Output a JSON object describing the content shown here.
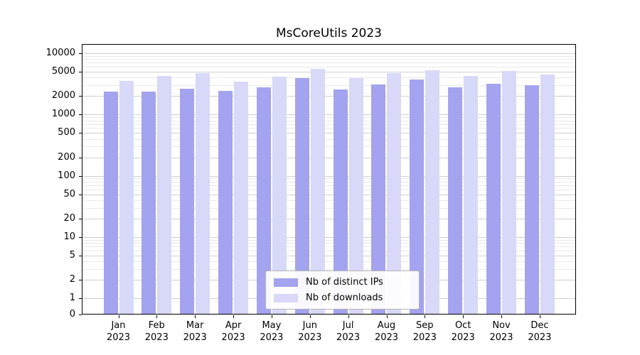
{
  "title": "MsCoreUtils 2023",
  "chart_data": {
    "type": "bar",
    "title": "MsCoreUtils 2023",
    "categories": [
      "Jan 2023",
      "Feb 2023",
      "Mar 2023",
      "Apr 2023",
      "May 2023",
      "Jun 2023",
      "Jul 2023",
      "Aug 2023",
      "Sep 2023",
      "Oct 2023",
      "Nov 2023",
      "Dec 2023"
    ],
    "x_tick_line1": [
      "Jan",
      "Feb",
      "Mar",
      "Apr",
      "May",
      "Jun",
      "Jul",
      "Aug",
      "Sep",
      "Oct",
      "Nov",
      "Dec"
    ],
    "x_tick_line2": "2023",
    "series": [
      {
        "name": "Nb of distinct IPs",
        "color": "#a3a3ef",
        "values": [
          2350,
          2400,
          2650,
          2450,
          2750,
          3900,
          2550,
          3100,
          3700,
          2750,
          3200,
          3000
        ]
      },
      {
        "name": "Nb of downloads",
        "color": "#d8d8f8",
        "values": [
          3500,
          4300,
          4750,
          3450,
          4150,
          5500,
          3900,
          4750,
          5300,
          4300,
          5200,
          4500
        ]
      }
    ],
    "yscale": "symlog",
    "yticks": [
      0,
      1,
      2,
      5,
      10,
      20,
      50,
      100,
      200,
      500,
      1000,
      2000,
      5000,
      10000
    ],
    "ylim": [
      0,
      14000
    ],
    "grid": true,
    "grid_which": "both",
    "legend_position": "lower center",
    "xlabel": "",
    "ylabel": ""
  }
}
